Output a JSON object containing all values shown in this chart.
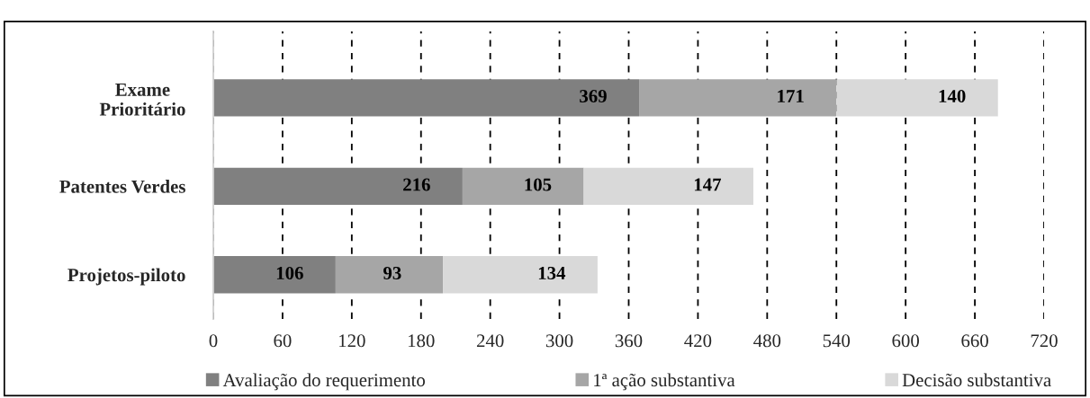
{
  "chart_data": {
    "type": "bar",
    "orientation": "horizontal",
    "stacked": true,
    "categories": [
      "Exame\nPrioritário",
      "Patentes Verdes",
      "Projetos-piloto"
    ],
    "series": [
      {
        "name": "Avaliação do requerimento",
        "color": "#808080",
        "values": [
          369,
          216,
          106
        ]
      },
      {
        "name": "1ª ação substantiva",
        "color": "#a6a6a6",
        "values": [
          171,
          105,
          93
        ]
      },
      {
        "name": "Decisão substantiva",
        "color": "#d9d9d9",
        "values": [
          140,
          147,
          134
        ]
      }
    ],
    "xlim": [
      0,
      720
    ],
    "xticks": [
      0,
      60,
      120,
      180,
      240,
      300,
      360,
      420,
      480,
      540,
      600,
      660,
      720
    ],
    "grid": "x",
    "legend": "bottom",
    "data_labels": true
  }
}
